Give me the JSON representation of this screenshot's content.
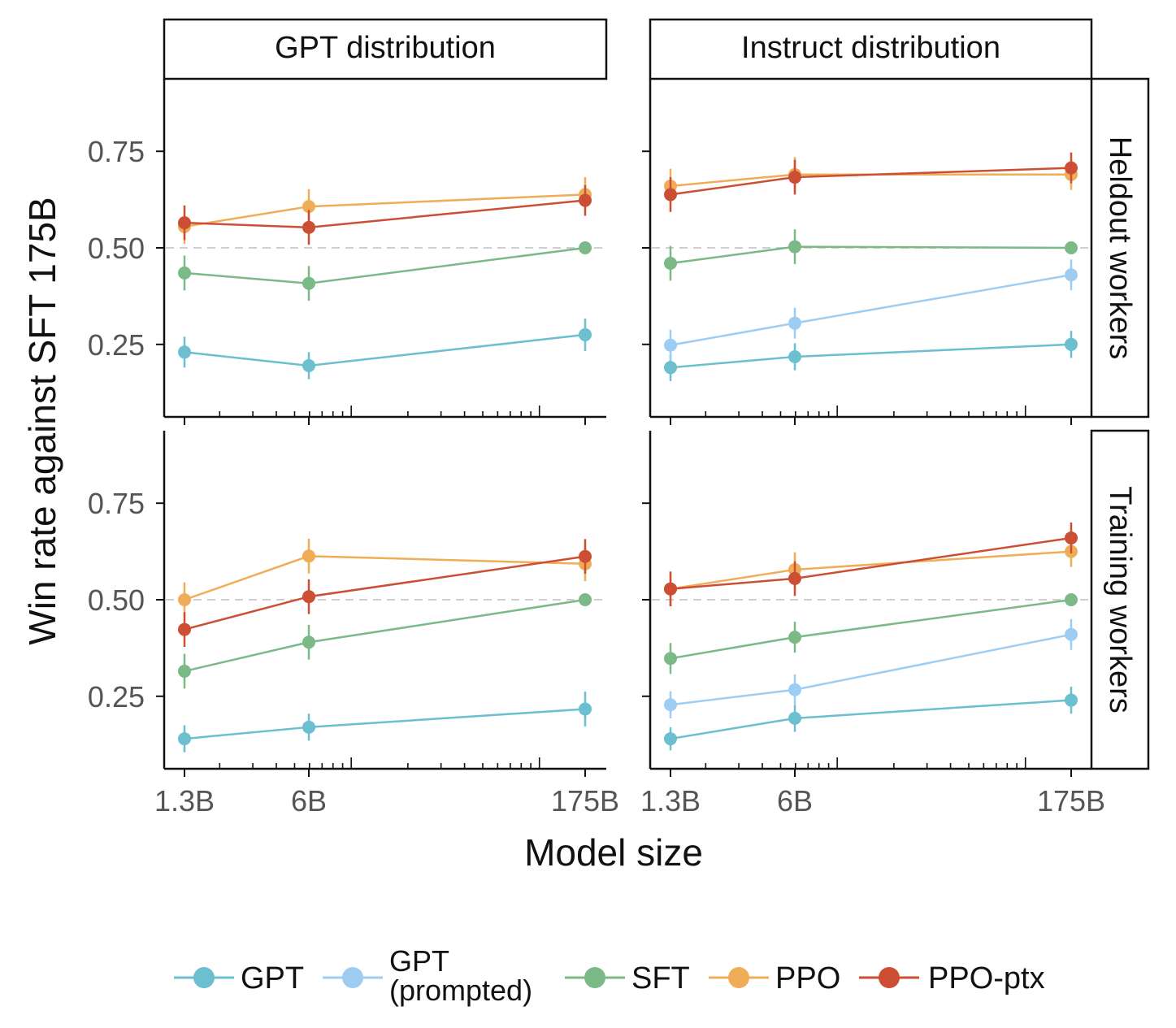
{
  "colors": {
    "GPT": "#6bbfcf",
    "GPT (prompted)": "#9ecdf4",
    "SFT": "#7bb987",
    "PPO": "#f0ad58",
    "PPO-ptx": "#cb4e35"
  },
  "labels": {
    "ylabel": "Win rate against SFT 175B",
    "xlabel": "Model size",
    "col_titles": [
      "GPT distribution",
      "Instruct distribution"
    ],
    "row_titles": [
      "Heldout workers",
      "Training workers"
    ]
  },
  "legend": [
    {
      "key": "GPT",
      "lines": [
        "GPT"
      ]
    },
    {
      "key": "GPT (prompted)",
      "lines": [
        "GPT",
        "(prompted)"
      ]
    },
    {
      "key": "SFT",
      "lines": [
        "SFT"
      ]
    },
    {
      "key": "PPO",
      "lines": [
        "PPO"
      ]
    },
    {
      "key": "PPO-ptx",
      "lines": [
        "PPO-ptx"
      ]
    }
  ],
  "chart_data": [
    {
      "type": "line",
      "facet": {
        "column": "GPT distribution",
        "row": "Heldout workers"
      },
      "x": [
        "1.3B",
        "6B",
        "175B"
      ],
      "x_scale": "log",
      "yticks": [
        "0.25",
        "0.50",
        "0.75"
      ],
      "ylim": [
        0.08,
        0.92
      ],
      "reference_line": 0.5,
      "series": [
        {
          "name": "GPT",
          "values": [
            0.23,
            0.195,
            0.275
          ],
          "errors": [
            0.04,
            0.035,
            0.042
          ]
        },
        {
          "name": "SFT",
          "values": [
            0.435,
            0.408,
            0.5
          ],
          "errors": [
            0.045,
            0.045,
            0
          ]
        },
        {
          "name": "PPO",
          "values": [
            0.555,
            0.607,
            0.638
          ],
          "errors": [
            0.045,
            0.045,
            0.045
          ]
        },
        {
          "name": "PPO-ptx",
          "values": [
            0.565,
            0.553,
            0.623
          ],
          "errors": [
            0.045,
            0.045,
            0.04
          ]
        }
      ]
    },
    {
      "type": "line",
      "facet": {
        "column": "Instruct distribution",
        "row": "Heldout workers"
      },
      "x": [
        "1.3B",
        "6B",
        "175B"
      ],
      "x_scale": "log",
      "yticks": [
        "0.25",
        "0.50",
        "0.75"
      ],
      "ylim": [
        0.08,
        0.92
      ],
      "reference_line": 0.5,
      "series": [
        {
          "name": "GPT",
          "values": [
            0.19,
            0.218,
            0.25
          ],
          "errors": [
            0.035,
            0.035,
            0.035
          ]
        },
        {
          "name": "GPT (prompted)",
          "values": [
            0.248,
            0.305,
            0.43
          ],
          "errors": [
            0.04,
            0.04,
            0.04
          ]
        },
        {
          "name": "SFT",
          "values": [
            0.46,
            0.503,
            0.5
          ],
          "errors": [
            0.045,
            0.045,
            0
          ]
        },
        {
          "name": "PPO",
          "values": [
            0.66,
            0.69,
            0.69
          ],
          "errors": [
            0.045,
            0.045,
            0.04
          ]
        },
        {
          "name": "PPO-ptx",
          "values": [
            0.638,
            0.683,
            0.707
          ],
          "errors": [
            0.045,
            0.045,
            0.04
          ]
        }
      ]
    },
    {
      "type": "line",
      "facet": {
        "column": "GPT distribution",
        "row": "Training workers"
      },
      "x": [
        "1.3B",
        "6B",
        "175B"
      ],
      "x_scale": "log",
      "yticks": [
        "0.25",
        "0.50",
        "0.75"
      ],
      "ylim": [
        0.08,
        0.92
      ],
      "reference_line": 0.5,
      "series": [
        {
          "name": "GPT",
          "values": [
            0.14,
            0.17,
            0.217
          ],
          "errors": [
            0.035,
            0.035,
            0.045
          ]
        },
        {
          "name": "SFT",
          "values": [
            0.315,
            0.39,
            0.5
          ],
          "errors": [
            0.045,
            0.045,
            0
          ]
        },
        {
          "name": "PPO",
          "values": [
            0.5,
            0.613,
            0.593
          ],
          "errors": [
            0.045,
            0.045,
            0.045
          ]
        },
        {
          "name": "PPO-ptx",
          "values": [
            0.423,
            0.508,
            0.612
          ],
          "errors": [
            0.045,
            0.045,
            0.045
          ]
        }
      ]
    },
    {
      "type": "line",
      "facet": {
        "column": "Instruct distribution",
        "row": "Training workers"
      },
      "x": [
        "1.3B",
        "6B",
        "175B"
      ],
      "x_scale": "log",
      "yticks": [
        "0.25",
        "0.50",
        "0.75"
      ],
      "ylim": [
        0.08,
        0.92
      ],
      "reference_line": 0.5,
      "series": [
        {
          "name": "GPT",
          "values": [
            0.14,
            0.193,
            0.24
          ],
          "errors": [
            0.03,
            0.035,
            0.035
          ]
        },
        {
          "name": "GPT (prompted)",
          "values": [
            0.228,
            0.267,
            0.41
          ],
          "errors": [
            0.035,
            0.04,
            0.04
          ]
        },
        {
          "name": "SFT",
          "values": [
            0.348,
            0.403,
            0.5
          ],
          "errors": [
            0.04,
            0.04,
            0
          ]
        },
        {
          "name": "PPO",
          "values": [
            0.528,
            0.578,
            0.625
          ],
          "errors": [
            0.045,
            0.045,
            0.04
          ]
        },
        {
          "name": "PPO-ptx",
          "values": [
            0.528,
            0.555,
            0.66
          ],
          "errors": [
            0.045,
            0.045,
            0.04
          ]
        }
      ]
    }
  ]
}
